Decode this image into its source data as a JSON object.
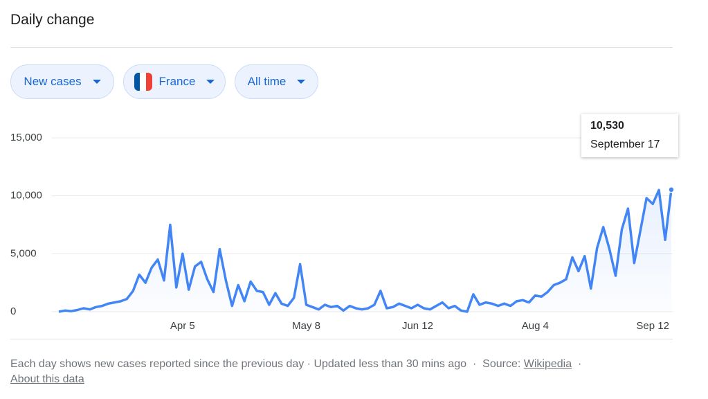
{
  "header": {
    "title": "Daily change"
  },
  "controls": [
    "New cases",
    "France",
    "All time"
  ],
  "chart_data": {
    "type": "line",
    "color": "#4285f4",
    "categories": [
      null,
      null,
      null,
      null,
      null,
      null,
      null,
      null,
      null,
      null,
      null,
      null,
      null,
      null,
      null,
      null,
      null,
      null,
      null,
      null,
      "Apr 5",
      null,
      null,
      null,
      null,
      null,
      null,
      null,
      null,
      null,
      null,
      null,
      null,
      null,
      null,
      null,
      null,
      null,
      null,
      null,
      "May 8",
      null,
      null,
      null,
      null,
      null,
      null,
      null,
      null,
      null,
      null,
      null,
      null,
      null,
      null,
      null,
      null,
      null,
      "Jun 12",
      null,
      null,
      null,
      null,
      null,
      null,
      null,
      null,
      null,
      null,
      null,
      null,
      null,
      null,
      null,
      null,
      null,
      null,
      "Aug 4",
      null,
      null,
      null,
      null,
      null,
      null,
      null,
      null,
      null,
      null,
      null,
      null,
      null,
      null,
      null,
      null,
      null,
      null,
      "Sep 12",
      null,
      null,
      null
    ],
    "values": [
      0,
      100,
      50,
      150,
      300,
      200,
      400,
      500,
      700,
      800,
      900,
      1100,
      1800,
      3200,
      2500,
      3800,
      4500,
      2700,
      7500,
      2100,
      5000,
      1900,
      3900,
      4300,
      2800,
      1700,
      5400,
      2700,
      500,
      2300,
      900,
      2600,
      1800,
      1700,
      600,
      1600,
      700,
      500,
      1200,
      4100,
      600,
      400,
      200,
      600,
      400,
      500,
      100,
      500,
      300,
      200,
      300,
      600,
      1800,
      300,
      400,
      700,
      500,
      300,
      600,
      300,
      200,
      500,
      800,
      300,
      500,
      100,
      0,
      1500,
      600,
      800,
      700,
      500,
      700,
      500,
      900,
      1000,
      800,
      1400,
      1300,
      1700,
      2300,
      2500,
      2800,
      4700,
      3500,
      4800,
      2000,
      5500,
      7300,
      5400,
      3100,
      7100,
      8900,
      4200,
      7000,
      9800,
      9300,
      10500,
      6200,
      10530
    ],
    "ylim": [
      0,
      15000
    ],
    "yticks": [
      0,
      {
        "value": 5000,
        "label": "5,000"
      },
      {
        "value": 10000,
        "label": "10,000"
      },
      {
        "value": 15000,
        "label": "15,000"
      }
    ],
    "grid": true,
    "tooltip": {
      "label": "10,530",
      "date": "September 17"
    }
  },
  "footer": {
    "note": "Each day shows new cases reported since the previous day · Updated less than 30 mins ago",
    "separator": "·",
    "source_label": "Source:",
    "source_link": "Wikipedia",
    "about_link": "About this data"
  }
}
